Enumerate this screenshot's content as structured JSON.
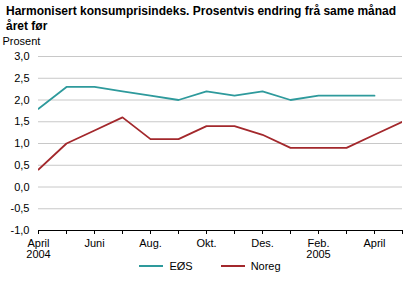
{
  "chart_data": {
    "type": "line",
    "title": "Harmonisert konsumprisindeks. Prosentvis endring frå same månad året før",
    "y_label": "Prosent",
    "categories": [
      "April\n2004",
      null,
      "Juni",
      null,
      "Aug.",
      null,
      "Okt.",
      null,
      "Des.",
      null,
      "Feb.\n2005",
      null,
      "April",
      null
    ],
    "series": [
      {
        "name": "EØS",
        "color": "#2e9a9c",
        "values": [
          1.8,
          2.3,
          2.3,
          2.2,
          2.1,
          2.0,
          2.2,
          2.1,
          2.2,
          2.0,
          2.1,
          2.1,
          2.1,
          null
        ]
      },
      {
        "name": "Noreg",
        "color": "#a3282c",
        "values": [
          0.4,
          1.0,
          1.3,
          1.6,
          1.1,
          1.1,
          1.4,
          1.4,
          1.2,
          0.9,
          0.9,
          0.9,
          1.2,
          1.5
        ]
      }
    ],
    "ylim": [
      -1,
      3
    ],
    "yticks": [
      {
        "value": -1,
        "label": "-1,0"
      },
      {
        "value": -0.5,
        "label": "-0,5"
      },
      {
        "value": 0,
        "label": "0,0"
      },
      {
        "value": 0.5,
        "label": "0,5"
      },
      {
        "value": 1,
        "label": "1,0"
      },
      {
        "value": 1.5,
        "label": "1,5"
      },
      {
        "value": 2,
        "label": "2,0"
      },
      {
        "value": 2.5,
        "label": "2,5"
      },
      {
        "value": 3,
        "label": "3,0"
      }
    ],
    "grid": true,
    "legend": "bottom"
  }
}
